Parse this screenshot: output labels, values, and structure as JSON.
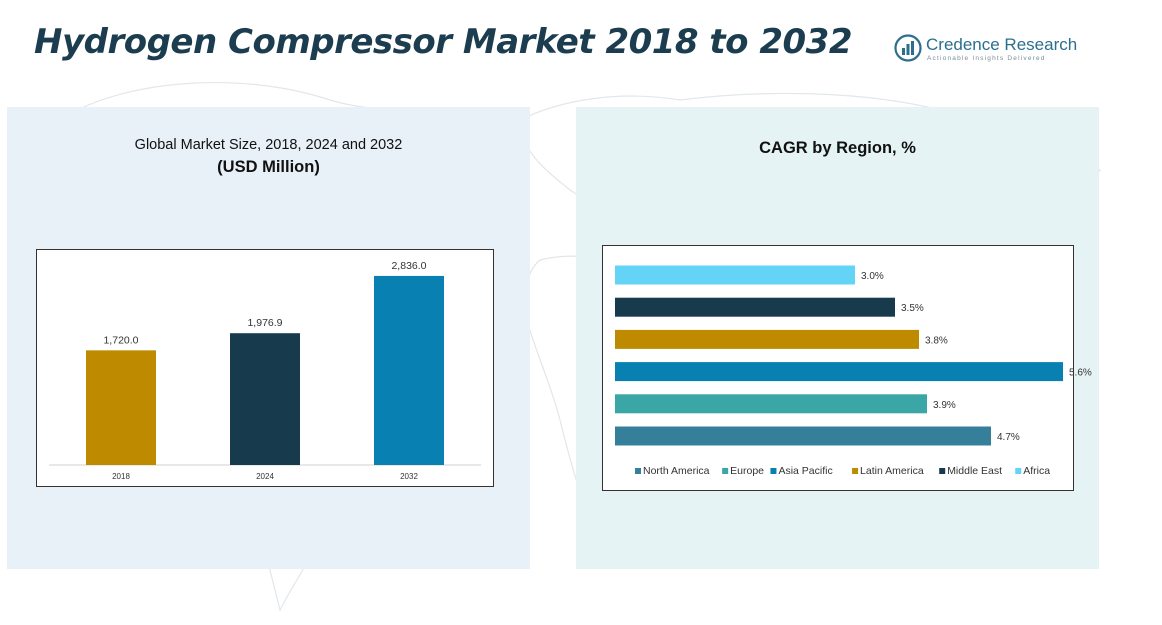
{
  "header": {
    "title": "Hydrogen Compressor Market 2018 to 2032"
  },
  "logo": {
    "name": "Credence Research",
    "tagline": "Actionable Insights Delivered"
  },
  "left_panel": {
    "subtitle": "Global Market Size, 2018, 2024 and 2032",
    "unit": "(USD Million)"
  },
  "right_panel": {
    "title": "CAGR by Region, %"
  },
  "colors": {
    "bar_2018": "#be8b00",
    "bar_2024": "#173b4d",
    "bar_2032": "#0880b1",
    "north_america": "#357f9b",
    "europe": "#3aa6a5",
    "asia_pacific": "#0880b1",
    "latin_america": "#be8b00",
    "middle_east": "#173b4d",
    "africa": "#63d3f6"
  },
  "chart_data": [
    {
      "type": "bar",
      "categories": [
        "2018",
        "2024",
        "2032"
      ],
      "values": [
        1720.0,
        1976.9,
        2836.0
      ],
      "value_labels": [
        "1,720.0",
        "1,976.9",
        "2,836.0"
      ],
      "colors": [
        "#be8b00",
        "#173b4d",
        "#0880b1"
      ],
      "title": "Global Market Size, 2018, 2024 and 2032",
      "subtitle": "(USD Million)",
      "xlabel": "",
      "ylabel": "",
      "ylim": [
        0,
        3000
      ],
      "grid": false
    },
    {
      "type": "bar",
      "orientation": "horizontal",
      "title": "CAGR by Region, %",
      "series": [
        {
          "name": "North America",
          "value": 4.7,
          "label": "4.7%",
          "color": "#357f9b"
        },
        {
          "name": "Europe",
          "value": 3.9,
          "label": "3.9%",
          "color": "#3aa6a5"
        },
        {
          "name": "Asia Pacific",
          "value": 5.6,
          "label": "5.6%",
          "color": "#0880b1"
        },
        {
          "name": "Latin America",
          "value": 3.8,
          "label": "3.8%",
          "color": "#be8b00"
        },
        {
          "name": "Middle East",
          "value": 3.5,
          "label": "3.5%",
          "color": "#173b4d"
        },
        {
          "name": "Africa",
          "value": 3.0,
          "label": "3.0%",
          "color": "#63d3f6"
        }
      ],
      "xlim": [
        0,
        6
      ],
      "legend": "bottom",
      "grid": false
    }
  ]
}
